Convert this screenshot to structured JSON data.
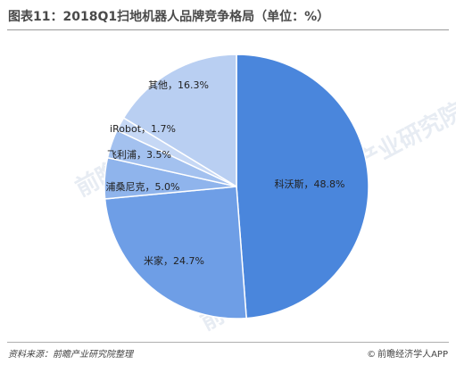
{
  "chart_data": {
    "type": "pie",
    "title": "图表11：2018Q1扫地机器人品牌竞争格局（单位：%）",
    "unit": "%",
    "slices": [
      {
        "name": "科沃斯",
        "value": 48.8,
        "label": "科沃斯，48.8%",
        "color": "#4a86dc"
      },
      {
        "name": "米家",
        "value": 24.7,
        "label": "米家，24.7%",
        "color": "#6e9ee6"
      },
      {
        "name": "浦桑尼克",
        "value": 5.0,
        "label": "浦桑尼克，5.0%",
        "color": "#8fb4ec"
      },
      {
        "name": "飞利浦",
        "value": 3.5,
        "label": "飞利浦，3.5%",
        "color": "#a3c1ef"
      },
      {
        "name": "iRobot",
        "value": 1.7,
        "label": "iRobot，1.7%",
        "color": "#c6d8f5"
      },
      {
        "name": "其他",
        "value": 16.3,
        "label": "其他，16.3%",
        "color": "#b9cff2"
      }
    ]
  },
  "footer": {
    "source": "资料来源：前瞻产业研究院整理",
    "brand": "前瞻经济学人APP",
    "brand_icon": "copyright-icon"
  },
  "watermark_text": "前瞻产业研究院"
}
